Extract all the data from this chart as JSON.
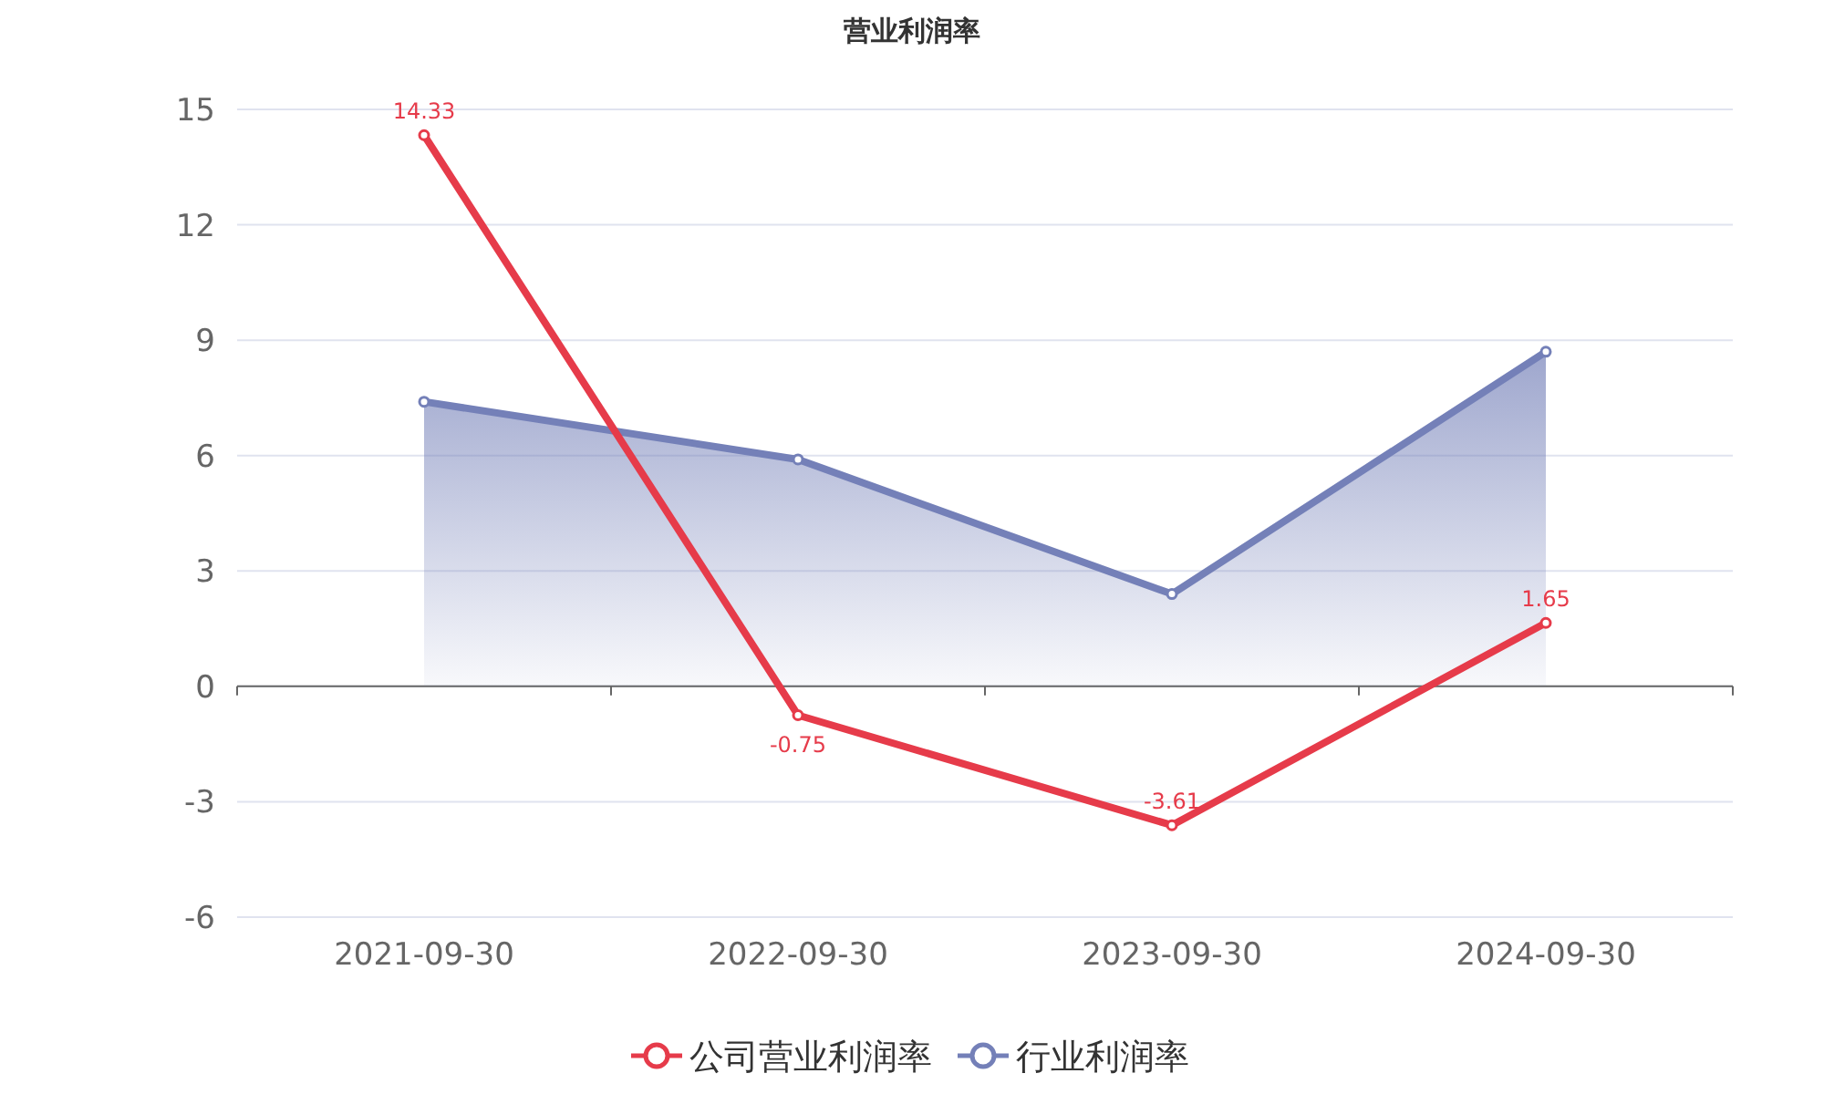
{
  "chart_data": {
    "type": "line",
    "title": "营业利润率",
    "categories": [
      "2021-09-30",
      "2022-09-30",
      "2023-09-30",
      "2024-09-30"
    ],
    "series": [
      {
        "name": "公司营业利润率",
        "color": "#e63b4a",
        "values": [
          14.33,
          -0.75,
          -3.61,
          1.65
        ],
        "value_labels": [
          "14.33",
          "-0.75",
          "-3.61",
          "1.65"
        ]
      },
      {
        "name": "行业利润率",
        "type": "area",
        "color": "#7480b8",
        "values": [
          7.4,
          5.9,
          2.4,
          8.7
        ]
      }
    ],
    "ylim": [
      -6,
      15
    ],
    "yticks": [
      -6,
      -3,
      0,
      3,
      6,
      9,
      12,
      15
    ],
    "grid": "y",
    "legend": "bottom",
    "marker": "circle"
  }
}
